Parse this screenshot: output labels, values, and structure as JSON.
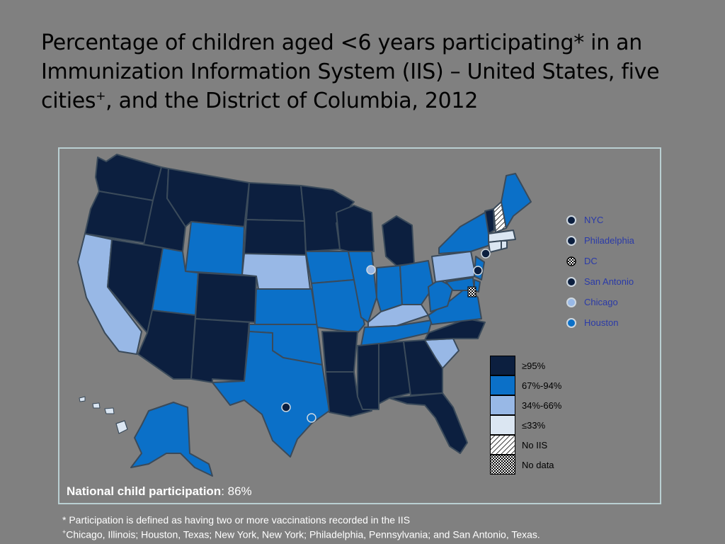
{
  "title": {
    "line1": "Percentage of children aged <6 years participating* in an",
    "line2": "Immunization Information System (IIS) – United States, five",
    "line3_pre": "cities",
    "line3_sup": "+",
    "line3_post": ", and the District of Columbia, 2012"
  },
  "colors": {
    "ge95": "#0c1f3f",
    "p67_94": "#0b70c8",
    "p34_66": "#98b8e6",
    "le33": "#dbe6f2",
    "border": "#3a4a5a"
  },
  "city_legend": [
    {
      "name": "NYC",
      "fill": "#0c1f3f"
    },
    {
      "name": "Philadelphia",
      "fill": "#0c1f3f"
    },
    {
      "name": "DC",
      "fill": "pattern"
    },
    {
      "name": "San Antonio",
      "fill": "#0c1f3f"
    },
    {
      "name": "Chicago",
      "fill": "#98b8e6"
    },
    {
      "name": "Houston",
      "fill": "#0b70c8"
    }
  ],
  "scale_legend": [
    {
      "label": "≥95%",
      "fill": "#0c1f3f"
    },
    {
      "label": "67%-94%",
      "fill": "#0b70c8"
    },
    {
      "label": "34%-66%",
      "fill": "#98b8e6"
    },
    {
      "label": "≤33%",
      "fill": "#dbe6f2"
    },
    {
      "label": "No IIS",
      "fill": "hatch"
    },
    {
      "label": "No data",
      "fill": "checker"
    }
  ],
  "national": {
    "label": "National child participation",
    "value": ": 86%"
  },
  "footnotes": {
    "note1": "* Participation is defined as having two or more vaccinations recorded in the IIS",
    "note2_sup": "+",
    "note2": "Chicago, Illinois; Houston, Texas; New York, New York; Philadelphia, Pennsylvania; and San Antonio, Texas."
  }
}
